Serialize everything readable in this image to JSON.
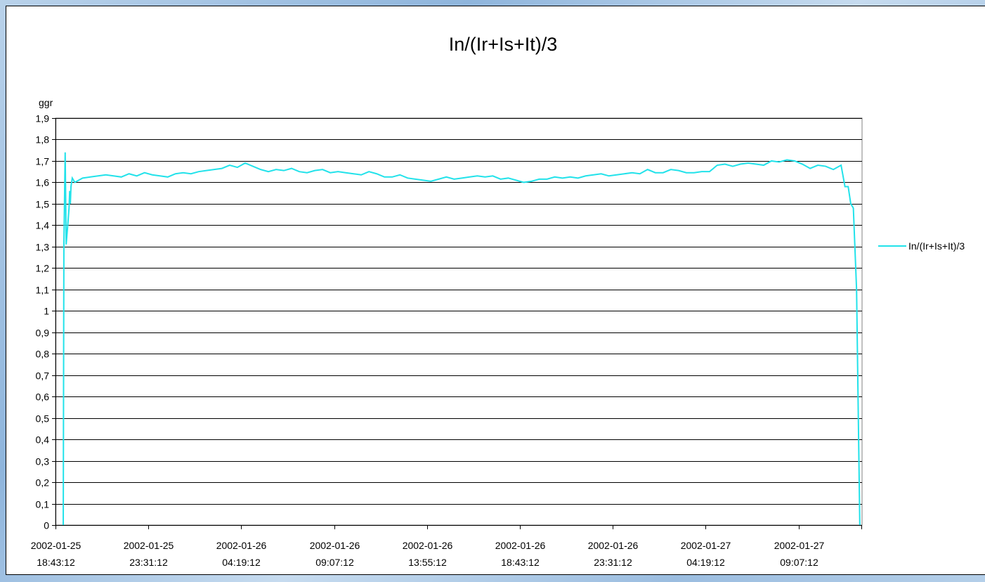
{
  "chart_data": {
    "type": "line",
    "title": "In/(Ir+Is+It)/3",
    "y_label": "ggr",
    "legend": "right",
    "grid": true,
    "ylim": [
      0,
      1.9
    ],
    "yticks": [
      0,
      {
        "value": 0.1,
        "label": "0,1"
      },
      {
        "value": 0.2,
        "label": "0,2"
      },
      {
        "value": 0.3,
        "label": "0,3"
      },
      {
        "value": 0.4,
        "label": "0,4"
      },
      {
        "value": 0.5,
        "label": "0,5"
      },
      {
        "value": 0.6,
        "label": "0,6"
      },
      {
        "value": 0.7,
        "label": "0,7"
      },
      {
        "value": 0.8,
        "label": "0,8"
      },
      {
        "value": 0.9,
        "label": "0,9"
      },
      1,
      {
        "value": 1.1,
        "label": "1,1"
      },
      {
        "value": 1.2,
        "label": "1,2"
      },
      {
        "value": 1.3,
        "label": "1,3"
      },
      {
        "value": 1.4,
        "label": "1,4"
      },
      {
        "value": 1.5,
        "label": "1,5"
      },
      {
        "value": 1.6,
        "label": "1,6"
      },
      {
        "value": 1.7,
        "label": "1,7"
      },
      {
        "value": 1.8,
        "label": "1,8"
      },
      {
        "value": 1.9,
        "label": "1,9"
      }
    ],
    "xlim": [
      "2002-01-25 18:43:12",
      "2002-01-27 12:24:12"
    ],
    "xticks": [
      "2002-01-25 18:43:12",
      "2002-01-25 23:31:12",
      "2002-01-26 04:19:12",
      "2002-01-26 09:07:12",
      "2002-01-26 13:55:12",
      "2002-01-26 18:43:12",
      "2002-01-26 23:31:12",
      "2002-01-27 04:19:12",
      "2002-01-27 09:07:12"
    ],
    "x": [
      "2002-01-25 19:07:12",
      "2002-01-25 19:09:12",
      "2002-01-25 19:13:12",
      "2002-01-25 19:16:12",
      "2002-01-25 19:21:12",
      "2002-01-25 19:25:12",
      "2002-01-25 19:27:12",
      "2002-01-25 19:29:12",
      "2002-01-25 19:31:12",
      "2002-01-25 19:35:12",
      "2002-01-25 19:43:12",
      "2002-01-25 20:07:12",
      "2002-01-25 20:31:12",
      "2002-01-25 20:55:12",
      "2002-01-25 21:19:12",
      "2002-01-25 21:43:12",
      "2002-01-25 22:07:12",
      "2002-01-25 22:31:12",
      "2002-01-25 22:55:12",
      "2002-01-25 23:19:12",
      "2002-01-25 23:43:12",
      "2002-01-26 00:07:12",
      "2002-01-26 00:31:12",
      "2002-01-26 00:55:12",
      "2002-01-26 01:19:12",
      "2002-01-26 01:43:12",
      "2002-01-26 02:07:12",
      "2002-01-26 02:31:12",
      "2002-01-26 02:55:12",
      "2002-01-26 03:19:12",
      "2002-01-26 03:43:12",
      "2002-01-26 04:07:12",
      "2002-01-26 04:31:12",
      "2002-01-26 04:55:12",
      "2002-01-26 05:19:12",
      "2002-01-26 05:43:12",
      "2002-01-26 06:07:12",
      "2002-01-26 06:31:12",
      "2002-01-26 06:55:12",
      "2002-01-26 07:19:12",
      "2002-01-26 07:43:12",
      "2002-01-26 08:07:12",
      "2002-01-26 08:31:12",
      "2002-01-26 08:55:12",
      "2002-01-26 09:19:12",
      "2002-01-26 09:43:12",
      "2002-01-26 10:07:12",
      "2002-01-26 10:31:12",
      "2002-01-26 10:55:12",
      "2002-01-26 11:19:12",
      "2002-01-26 11:43:12",
      "2002-01-26 12:07:12",
      "2002-01-26 12:31:12",
      "2002-01-26 12:55:12",
      "2002-01-26 13:19:12",
      "2002-01-26 13:43:12",
      "2002-01-26 14:07:12",
      "2002-01-26 14:31:12",
      "2002-01-26 14:55:12",
      "2002-01-26 15:19:12",
      "2002-01-26 15:43:12",
      "2002-01-26 16:07:12",
      "2002-01-26 16:31:12",
      "2002-01-26 16:55:12",
      "2002-01-26 17:19:12",
      "2002-01-26 17:43:12",
      "2002-01-26 18:07:12",
      "2002-01-26 18:31:12",
      "2002-01-26 18:55:12",
      "2002-01-26 19:19:12",
      "2002-01-26 19:43:12",
      "2002-01-26 20:07:12",
      "2002-01-26 20:31:12",
      "2002-01-26 20:55:12",
      "2002-01-26 21:19:12",
      "2002-01-26 21:43:12",
      "2002-01-26 22:07:12",
      "2002-01-26 22:31:12",
      "2002-01-26 22:55:12",
      "2002-01-26 23:19:12",
      "2002-01-26 23:43:12",
      "2002-01-27 00:07:12",
      "2002-01-27 00:31:12",
      "2002-01-27 00:55:12",
      "2002-01-27 01:19:12",
      "2002-01-27 01:43:12",
      "2002-01-27 02:07:12",
      "2002-01-27 02:31:12",
      "2002-01-27 02:55:12",
      "2002-01-27 03:19:12",
      "2002-01-27 03:43:12",
      "2002-01-27 04:07:12",
      "2002-01-27 04:31:12",
      "2002-01-27 04:55:12",
      "2002-01-27 05:19:12",
      "2002-01-27 05:43:12",
      "2002-01-27 06:07:12",
      "2002-01-27 06:31:12",
      "2002-01-27 06:55:12",
      "2002-01-27 07:19:12",
      "2002-01-27 07:43:12",
      "2002-01-27 08:07:12",
      "2002-01-27 08:31:12",
      "2002-01-27 08:55:12",
      "2002-01-27 09:19:12",
      "2002-01-27 09:43:12",
      "2002-01-27 10:07:12",
      "2002-01-27 10:31:12",
      "2002-01-27 10:55:12",
      "2002-01-27 11:19:12",
      "2002-01-27 11:31:12",
      "2002-01-27 11:41:12",
      "2002-01-27 11:49:12",
      "2002-01-27 11:57:12",
      "2002-01-27 12:07:12",
      "2002-01-27 12:17:12"
    ],
    "series": [
      {
        "name": "In/(Ir+Is+It)/3",
        "color": "#22e2ea",
        "values": [
          0,
          1.3,
          1.74,
          1.31,
          1.4,
          1.48,
          1.56,
          1.5,
          1.58,
          1.62,
          1.6,
          1.62,
          1.625,
          1.63,
          1.635,
          1.63,
          1.625,
          1.64,
          1.63,
          1.645,
          1.635,
          1.63,
          1.625,
          1.64,
          1.645,
          1.64,
          1.65,
          1.655,
          1.66,
          1.665,
          1.68,
          1.67,
          1.69,
          1.675,
          1.66,
          1.65,
          1.66,
          1.655,
          1.665,
          1.65,
          1.645,
          1.655,
          1.66,
          1.645,
          1.65,
          1.645,
          1.64,
          1.635,
          1.65,
          1.64,
          1.625,
          1.625,
          1.635,
          1.62,
          1.615,
          1.61,
          1.605,
          1.615,
          1.625,
          1.615,
          1.62,
          1.625,
          1.63,
          1.625,
          1.63,
          1.615,
          1.62,
          1.61,
          1.6,
          1.605,
          1.615,
          1.615,
          1.625,
          1.62,
          1.625,
          1.62,
          1.63,
          1.635,
          1.64,
          1.63,
          1.635,
          1.64,
          1.645,
          1.64,
          1.66,
          1.645,
          1.645,
          1.66,
          1.655,
          1.645,
          1.645,
          1.65,
          1.65,
          1.68,
          1.685,
          1.675,
          1.685,
          1.69,
          1.685,
          1.68,
          1.7,
          1.695,
          1.705,
          1.7,
          1.685,
          1.665,
          1.68,
          1.675,
          1.66,
          1.68,
          1.58,
          1.58,
          1.5,
          1.48,
          1.1,
          0
        ]
      }
    ]
  }
}
